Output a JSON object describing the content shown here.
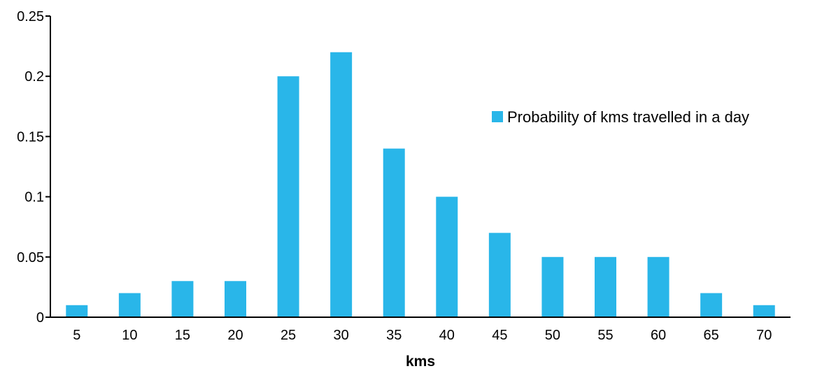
{
  "chart_data": {
    "type": "bar",
    "categories": [
      "5",
      "10",
      "15",
      "20",
      "25",
      "30",
      "35",
      "40",
      "45",
      "50",
      "55",
      "60",
      "65",
      "70"
    ],
    "series": [
      {
        "name": "Probability of kms travelled in a day",
        "values": [
          0.01,
          0.02,
          0.03,
          0.03,
          0.2,
          0.22,
          0.14,
          0.1,
          0.07,
          0.05,
          0.05,
          0.05,
          0.02,
          0.01
        ],
        "color": "#29b6e9"
      }
    ],
    "title": "",
    "xlabel": "kms",
    "ylabel": "",
    "ylim": [
      0,
      0.25
    ],
    "yticks": [
      "0",
      "0.05",
      "0.1",
      "0.15",
      "0.2",
      "0.25"
    ],
    "grid": false,
    "legend_position": "right"
  }
}
